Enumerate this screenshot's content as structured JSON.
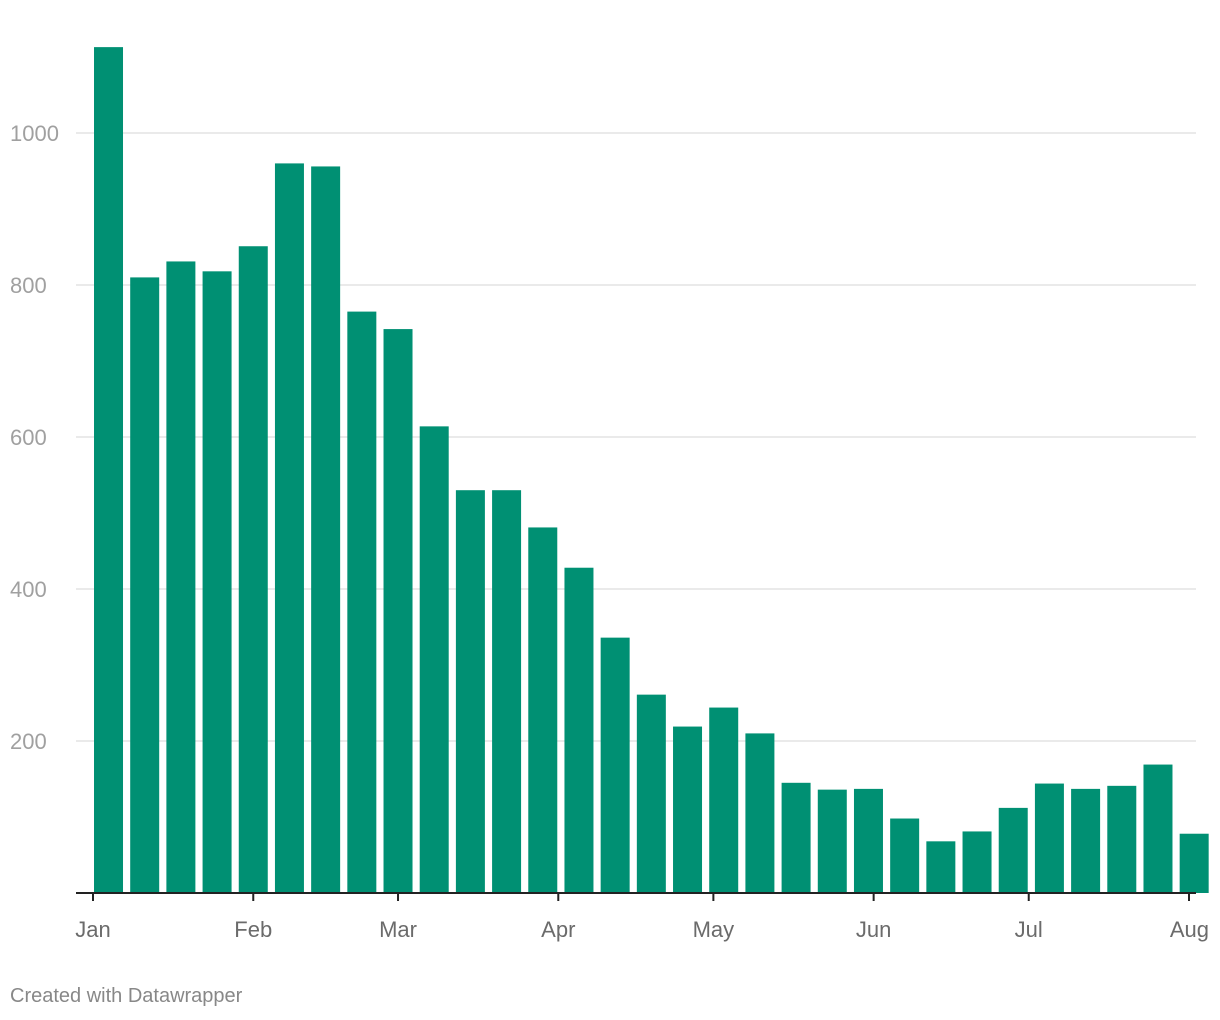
{
  "chart_data": {
    "type": "bar",
    "title": "",
    "xlabel": "",
    "ylabel": "",
    "ylim": [
      0,
      1140
    ],
    "y_ticks": [
      200,
      400,
      600,
      800,
      1000
    ],
    "y_tick_labels": [
      "200",
      "400",
      "600",
      "800",
      "1000"
    ],
    "grid": true,
    "bar_color": "#009073",
    "x_axis_range_days": [
      0,
      212
    ],
    "month_ticks": [
      {
        "label": "Jan",
        "day": 0
      },
      {
        "label": "Feb",
        "day": 31
      },
      {
        "label": "Mar",
        "day": 59
      },
      {
        "label": "Apr",
        "day": 90
      },
      {
        "label": "May",
        "day": 120
      },
      {
        "label": "Jun",
        "day": 151
      },
      {
        "label": "Jul",
        "day": 181
      },
      {
        "label": "Aug",
        "day": 212
      }
    ],
    "bars": [
      {
        "day": 3,
        "value": 1113
      },
      {
        "day": 10,
        "value": 810
      },
      {
        "day": 17,
        "value": 831
      },
      {
        "day": 24,
        "value": 818
      },
      {
        "day": 31,
        "value": 851
      },
      {
        "day": 38,
        "value": 960
      },
      {
        "day": 45,
        "value": 956
      },
      {
        "day": 52,
        "value": 765
      },
      {
        "day": 59,
        "value": 742
      },
      {
        "day": 66,
        "value": 614
      },
      {
        "day": 73,
        "value": 530
      },
      {
        "day": 80,
        "value": 530
      },
      {
        "day": 87,
        "value": 481
      },
      {
        "day": 94,
        "value": 428
      },
      {
        "day": 101,
        "value": 336
      },
      {
        "day": 108,
        "value": 261
      },
      {
        "day": 115,
        "value": 219
      },
      {
        "day": 122,
        "value": 244
      },
      {
        "day": 129,
        "value": 210
      },
      {
        "day": 136,
        "value": 145
      },
      {
        "day": 143,
        "value": 136
      },
      {
        "day": 150,
        "value": 137
      },
      {
        "day": 157,
        "value": 98
      },
      {
        "day": 164,
        "value": 68
      },
      {
        "day": 171,
        "value": 81
      },
      {
        "day": 178,
        "value": 112
      },
      {
        "day": 185,
        "value": 144
      },
      {
        "day": 192,
        "value": 137
      },
      {
        "day": 199,
        "value": 141
      },
      {
        "day": 206,
        "value": 169
      },
      {
        "day": 213,
        "value": 78
      }
    ]
  },
  "credit": "Created with Datawrapper"
}
